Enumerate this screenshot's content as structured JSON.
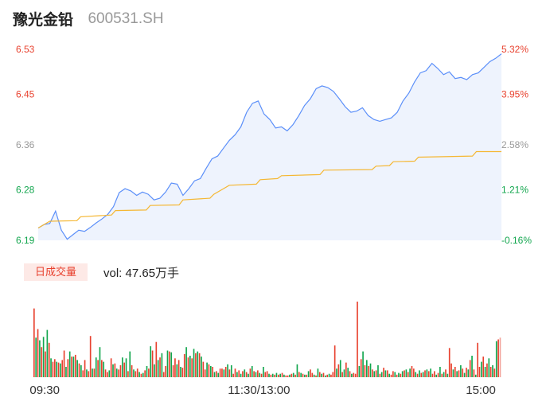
{
  "header": {
    "name": "豫光金铅",
    "code": "600531.SH"
  },
  "volume_panel": {
    "tag": "日成交量",
    "readout": "vol: 47.65万手"
  },
  "colors": {
    "price_line": "#5b8ff9",
    "price_fill": "#eef3fd",
    "avg_line": "#f5b733",
    "up": "#e8412e",
    "down": "#12a64e",
    "prev_close_label": "#999999"
  },
  "chart_data": [
    {
      "type": "line",
      "yticks": [
        {
          "label": "6.53",
          "value": 6.53,
          "color": "#e8412e"
        },
        {
          "label": "6.45",
          "value": 6.45,
          "color": "#e8412e"
        },
        {
          "label": "6.36",
          "value": 6.36,
          "color": "#999999"
        },
        {
          "label": "6.28",
          "value": 6.28,
          "color": "#12a64e"
        },
        {
          "label": "6.19",
          "value": 6.19,
          "color": "#12a64e"
        }
      ],
      "y2ticks": [
        {
          "label": "5.32%",
          "color": "#e8412e"
        },
        {
          "label": "3.95%",
          "color": "#e8412e"
        },
        {
          "label": "2.58%",
          "color": "#999999"
        },
        {
          "label": "1.21%",
          "color": "#12a64e"
        },
        {
          "label": "-0.16%",
          "color": "#12a64e"
        }
      ],
      "ylim": [
        6.19,
        6.53
      ],
      "xlim": [
        0,
        240
      ],
      "series": [
        {
          "role": "price",
          "points": [
            [
              0,
              6.212
            ],
            [
              3,
              6.218
            ],
            [
              6,
              6.22
            ],
            [
              9,
              6.242
            ],
            [
              12,
              6.208
            ],
            [
              15,
              6.192
            ],
            [
              18,
              6.2
            ],
            [
              21,
              6.208
            ],
            [
              24,
              6.206
            ],
            [
              27,
              6.213
            ],
            [
              30,
              6.221
            ],
            [
              33,
              6.228
            ],
            [
              36,
              6.236
            ],
            [
              39,
              6.25
            ],
            [
              42,
              6.275
            ],
            [
              45,
              6.282
            ],
            [
              48,
              6.278
            ],
            [
              51,
              6.27
            ],
            [
              54,
              6.276
            ],
            [
              57,
              6.272
            ],
            [
              60,
              6.262
            ],
            [
              63,
              6.265
            ],
            [
              66,
              6.276
            ],
            [
              69,
              6.292
            ],
            [
              72,
              6.29
            ],
            [
              75,
              6.27
            ],
            [
              78,
              6.282
            ],
            [
              81,
              6.296
            ],
            [
              84,
              6.3
            ],
            [
              87,
              6.318
            ],
            [
              90,
              6.335
            ],
            [
              93,
              6.34
            ],
            [
              96,
              6.354
            ],
            [
              99,
              6.368
            ],
            [
              102,
              6.378
            ],
            [
              105,
              6.392
            ],
            [
              108,
              6.418
            ],
            [
              111,
              6.434
            ],
            [
              114,
              6.438
            ],
            [
              117,
              6.415
            ],
            [
              120,
              6.405
            ],
            [
              123,
              6.39
            ],
            [
              126,
              6.392
            ],
            [
              129,
              6.385
            ],
            [
              132,
              6.396
            ],
            [
              135,
              6.412
            ],
            [
              138,
              6.43
            ],
            [
              141,
              6.442
            ],
            [
              144,
              6.46
            ],
            [
              147,
              6.465
            ],
            [
              150,
              6.462
            ],
            [
              153,
              6.455
            ],
            [
              156,
              6.442
            ],
            [
              159,
              6.428
            ],
            [
              162,
              6.418
            ],
            [
              165,
              6.42
            ],
            [
              168,
              6.426
            ],
            [
              171,
              6.412
            ],
            [
              174,
              6.405
            ],
            [
              177,
              6.402
            ],
            [
              180,
              6.405
            ],
            [
              183,
              6.408
            ],
            [
              186,
              6.418
            ],
            [
              189,
              6.438
            ],
            [
              192,
              6.452
            ],
            [
              195,
              6.472
            ],
            [
              198,
              6.488
            ],
            [
              201,
              6.492
            ],
            [
              204,
              6.505
            ],
            [
              207,
              6.496
            ],
            [
              210,
              6.485
            ],
            [
              213,
              6.49
            ],
            [
              216,
              6.478
            ],
            [
              219,
              6.48
            ],
            [
              222,
              6.476
            ],
            [
              225,
              6.485
            ],
            [
              228,
              6.488
            ],
            [
              231,
              6.498
            ],
            [
              234,
              6.508
            ],
            [
              237,
              6.514
            ],
            [
              240,
              6.522
            ]
          ]
        },
        {
          "role": "average",
          "points": [
            [
              0,
              6.212
            ],
            [
              6,
              6.224
            ],
            [
              20,
              6.225
            ],
            [
              22,
              6.232
            ],
            [
              38,
              6.235
            ],
            [
              40,
              6.243
            ],
            [
              56,
              6.244
            ],
            [
              58,
              6.252
            ],
            [
              73,
              6.253
            ],
            [
              75,
              6.262
            ],
            [
              89,
              6.265
            ],
            [
              91,
              6.272
            ],
            [
              95,
              6.28
            ],
            [
              99,
              6.288
            ],
            [
              113,
              6.29
            ],
            [
              115,
              6.298
            ],
            [
              124,
              6.3
            ],
            [
              126,
              6.305
            ],
            [
              146,
              6.307
            ],
            [
              148,
              6.315
            ],
            [
              173,
              6.316
            ],
            [
              175,
              6.322
            ],
            [
              182,
              6.323
            ],
            [
              184,
              6.33
            ],
            [
              195,
              6.331
            ],
            [
              197,
              6.338
            ],
            [
              225,
              6.34
            ],
            [
              227,
              6.348
            ],
            [
              240,
              6.348
            ]
          ]
        }
      ]
    },
    {
      "type": "bar",
      "xticks": [
        {
          "label": "09:30",
          "at": 6
        },
        {
          "label": "11:30/13:00",
          "at": 120
        },
        {
          "label": "15:00",
          "at": 238
        }
      ],
      "xlim": [
        0,
        240
      ],
      "volume": [
        80,
        46,
        56,
        43,
        35,
        47,
        30,
        55,
        40,
        22,
        18,
        21,
        18,
        17,
        16,
        20,
        31,
        12,
        21,
        30,
        24,
        24,
        26,
        20,
        16,
        14,
        8,
        20,
        9,
        7,
        48,
        10,
        10,
        23,
        20,
        35,
        20,
        18,
        9,
        6,
        8,
        22,
        15,
        16,
        10,
        9,
        14,
        23,
        17,
        22,
        7,
        30,
        14,
        9,
        7,
        10,
        6,
        4,
        5,
        8,
        13,
        10,
        36,
        31,
        15,
        41,
        20,
        23,
        28,
        6,
        13,
        31,
        30,
        29,
        14,
        22,
        15,
        20,
        12,
        11,
        27,
        35,
        23,
        25,
        22,
        33,
        28,
        30,
        28,
        24,
        18,
        9,
        17,
        15,
        13,
        12,
        6,
        7,
        5,
        10,
        10,
        9,
        12,
        15,
        9,
        14,
        4,
        10,
        6,
        8,
        4,
        7,
        9,
        6,
        4,
        10,
        13,
        7,
        6,
        8,
        5,
        4,
        12,
        6,
        7,
        4,
        3,
        4,
        3,
        5,
        3,
        4,
        5,
        3,
        2,
        2,
        3,
        4,
        5,
        3,
        15,
        6,
        5,
        4,
        3,
        3,
        7,
        9,
        5,
        3,
        2,
        10,
        6,
        4,
        5,
        2,
        3,
        4,
        3,
        6,
        37,
        10,
        15,
        20,
        6,
        9,
        17,
        11,
        7,
        4,
        5,
        4,
        88,
        13,
        21,
        30,
        14,
        20,
        13,
        16,
        9,
        7,
        8,
        14,
        4,
        6,
        11,
        8,
        8,
        4,
        3,
        7,
        6,
        3,
        5,
        4,
        7,
        8,
        9,
        6,
        10,
        13,
        10,
        6,
        4,
        8,
        5,
        6,
        8,
        9,
        7,
        10,
        4,
        7,
        3,
        5,
        12,
        4,
        6,
        9,
        4,
        34,
        16,
        9,
        12,
        7,
        8,
        14,
        10,
        5,
        11,
        9,
        20,
        25,
        9,
        3,
        40,
        12,
        18,
        24,
        12,
        16,
        22,
        12,
        14,
        10,
        42,
        44,
        46
      ],
      "up": [
        1,
        0,
        1,
        0,
        1,
        0,
        1,
        0,
        1,
        0,
        1,
        1,
        0,
        1,
        0,
        1,
        1,
        0,
        1,
        0,
        1,
        0,
        1,
        0,
        1,
        0,
        1,
        1,
        0,
        1,
        1,
        0,
        1,
        0,
        1,
        0,
        1,
        0,
        1,
        1,
        0,
        1,
        0,
        1,
        0,
        1,
        1,
        0,
        1,
        0,
        1,
        0,
        1,
        0,
        1,
        1,
        0,
        1,
        0,
        1,
        0,
        1,
        0,
        1,
        0,
        1,
        0,
        1,
        0,
        1,
        1,
        0,
        1,
        0,
        1,
        1,
        0,
        1,
        0,
        1,
        1,
        0,
        1,
        0,
        1,
        0,
        1,
        0,
        1,
        0,
        1,
        1,
        0,
        1,
        0,
        1,
        0,
        1,
        0,
        1,
        1,
        0,
        1,
        0,
        1,
        0,
        1,
        1,
        0,
        1,
        0,
        1,
        0,
        1,
        0,
        1,
        0,
        1,
        0,
        1,
        0,
        1,
        0,
        1,
        1,
        0,
        1,
        0,
        1,
        0,
        1,
        0,
        1,
        0,
        1,
        1,
        0,
        1,
        0,
        1,
        0,
        1,
        0,
        1,
        0,
        1,
        0,
        1,
        1,
        0,
        1,
        0,
        1,
        0,
        1,
        0,
        1,
        0,
        1,
        1,
        1,
        0,
        1,
        0,
        1,
        0,
        1,
        0,
        1,
        0,
        1,
        1,
        1,
        0,
        1,
        0,
        1,
        0,
        1,
        0,
        1,
        0,
        1,
        0,
        1,
        0,
        1,
        0,
        1,
        0,
        1,
        1,
        0,
        1,
        0,
        1,
        0,
        1,
        0,
        1,
        0,
        1,
        1,
        0,
        1,
        0,
        1,
        0,
        1,
        0,
        1,
        0,
        1,
        1,
        0,
        1,
        0,
        1,
        0,
        1,
        0,
        1,
        1,
        0,
        1,
        0,
        1,
        0,
        1,
        0,
        1,
        0,
        1,
        0,
        1,
        0,
        1,
        1,
        0,
        1,
        0,
        1,
        0,
        1,
        0,
        1,
        0,
        1,
        1,
        1
      ]
    }
  ]
}
